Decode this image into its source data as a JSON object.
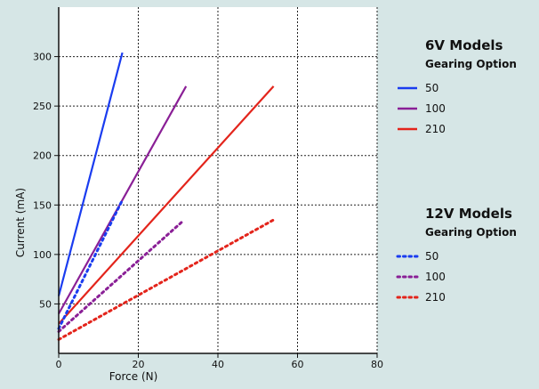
{
  "chart_data": {
    "type": "line",
    "title": "",
    "xlabel": "Force (N)",
    "ylabel": "Current (mA)",
    "xlim": [
      0,
      80
    ],
    "ylim": [
      0,
      350
    ],
    "x_ticks": [
      0,
      20,
      40,
      60,
      80
    ],
    "y_ticks": [
      50,
      100,
      150,
      200,
      250,
      300
    ],
    "grid": true,
    "legend_placement": "right",
    "legend_groups": [
      {
        "title": "6V Models",
        "subtitle": "Gearing Option",
        "dashed": false
      },
      {
        "title": "12V Models",
        "subtitle": "Gearing Option",
        "dashed": true
      }
    ],
    "series": [
      {
        "name": "50",
        "group": 0,
        "color": "#1a3cf0",
        "dashed": false,
        "points": [
          [
            0,
            58
          ],
          [
            16,
            304
          ]
        ]
      },
      {
        "name": "100",
        "group": 0,
        "color": "#8a1f96",
        "dashed": false,
        "points": [
          [
            0,
            40
          ],
          [
            32,
            270
          ]
        ]
      },
      {
        "name": "210",
        "group": 0,
        "color": "#e3241b",
        "dashed": false,
        "points": [
          [
            0,
            30
          ],
          [
            54,
            270
          ]
        ]
      },
      {
        "name": "50",
        "group": 1,
        "color": "#1a3cf0",
        "dashed": true,
        "points": [
          [
            0,
            25
          ],
          [
            16,
            155
          ]
        ]
      },
      {
        "name": "100",
        "group": 1,
        "color": "#8a1f96",
        "dashed": true,
        "points": [
          [
            0,
            22
          ],
          [
            31,
            133
          ]
        ]
      },
      {
        "name": "210",
        "group": 1,
        "color": "#e3241b",
        "dashed": true,
        "points": [
          [
            0,
            14
          ],
          [
            54,
            135
          ]
        ]
      }
    ]
  }
}
